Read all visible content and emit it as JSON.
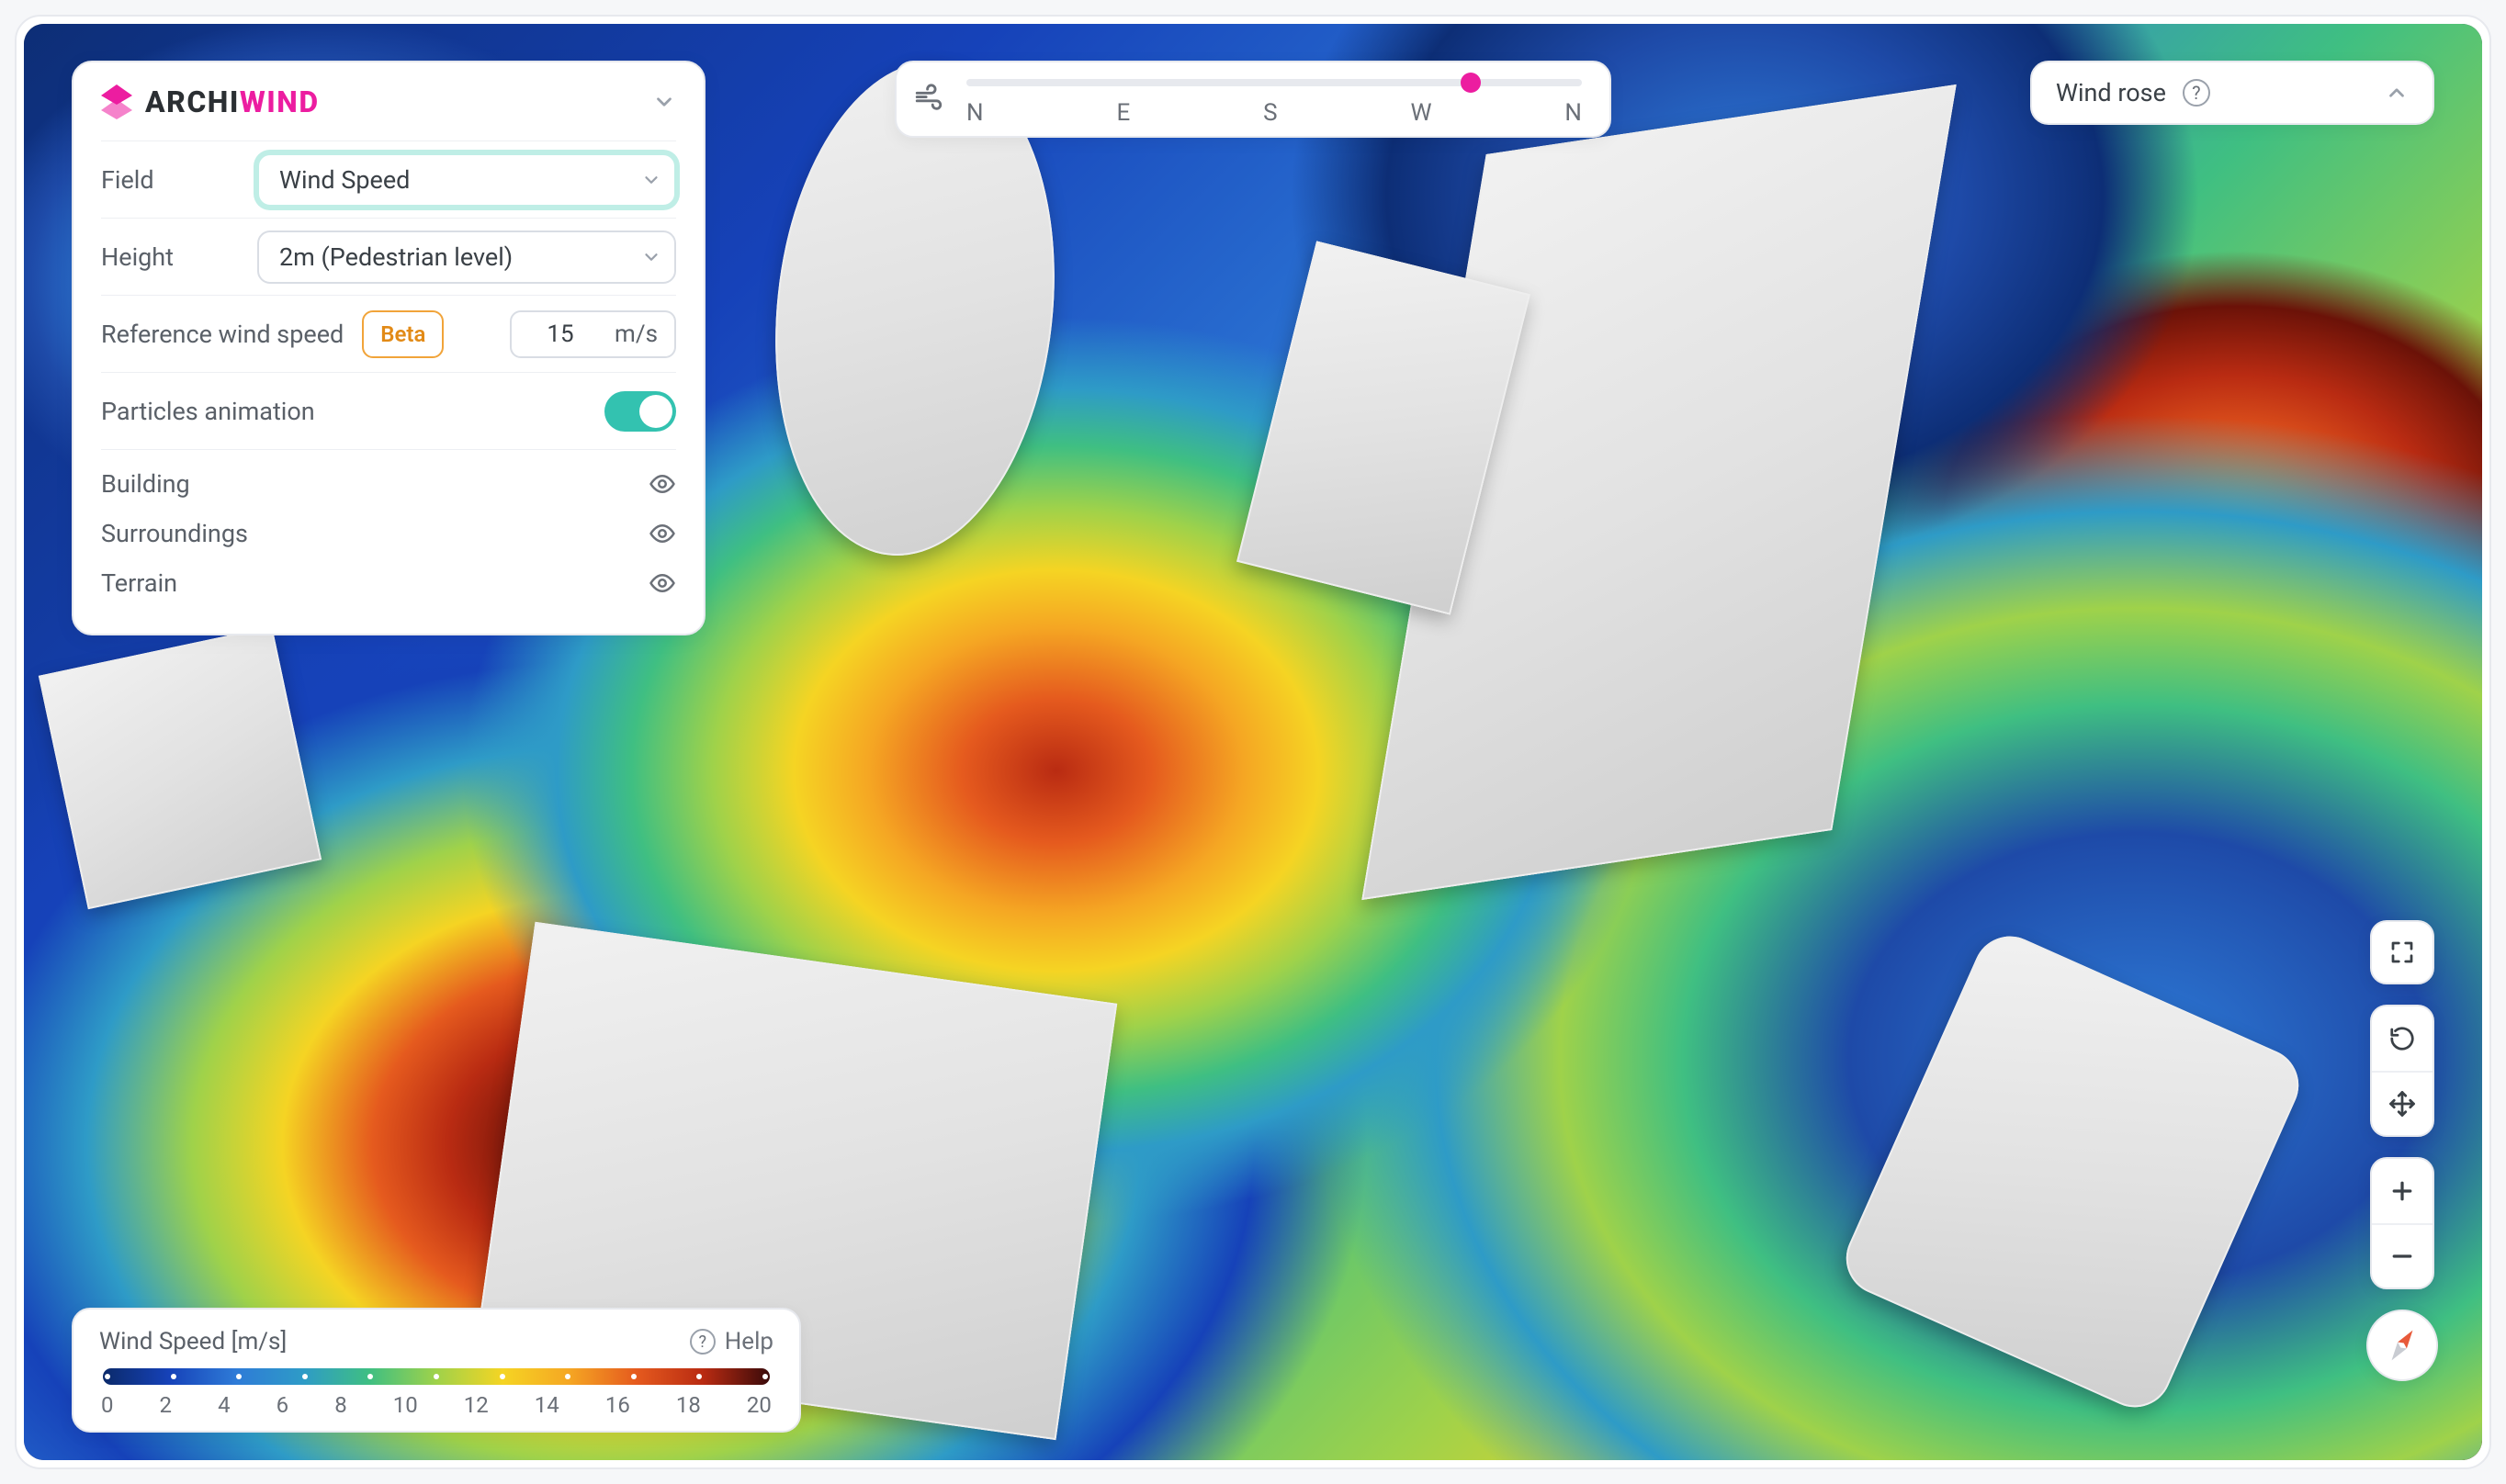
{
  "brand": {
    "part1": "ARCHI",
    "part2": "WIND"
  },
  "accent_pink": "#ec1da0",
  "accent_teal": "#33c2b0",
  "panel": {
    "field_label": "Field",
    "field_value": "Wind Speed",
    "height_label": "Height",
    "height_value": "2m (Pedestrian level)",
    "ref_label": "Reference wind speed",
    "ref_beta": "Beta",
    "ref_value": "15",
    "ref_unit": "m/s",
    "particles_label": "Particles animation",
    "particles_on": true,
    "layers": [
      {
        "name": "Building",
        "visible": true
      },
      {
        "name": "Surroundings",
        "visible": true
      },
      {
        "name": "Terrain",
        "visible": true
      }
    ]
  },
  "direction": {
    "labels": [
      "N",
      "E",
      "S",
      "W",
      "N"
    ],
    "value_percent": 82
  },
  "rose": {
    "title": "Wind rose"
  },
  "legend": {
    "title": "Wind Speed [m/s]",
    "help": "Help",
    "min": 0,
    "max": 20,
    "step": 2,
    "ticks": [
      "0",
      "2",
      "4",
      "6",
      "8",
      "10",
      "12",
      "14",
      "16",
      "18",
      "20"
    ],
    "colors": [
      "#0b2a6a",
      "#1642b9",
      "#2e7bd7",
      "#2e9bc7",
      "#3fbf82",
      "#9fd24a",
      "#f5d423",
      "#f5a623",
      "#e55a1e",
      "#b92b12",
      "#3a0a0a"
    ]
  },
  "compass_heading_deg": 35
}
